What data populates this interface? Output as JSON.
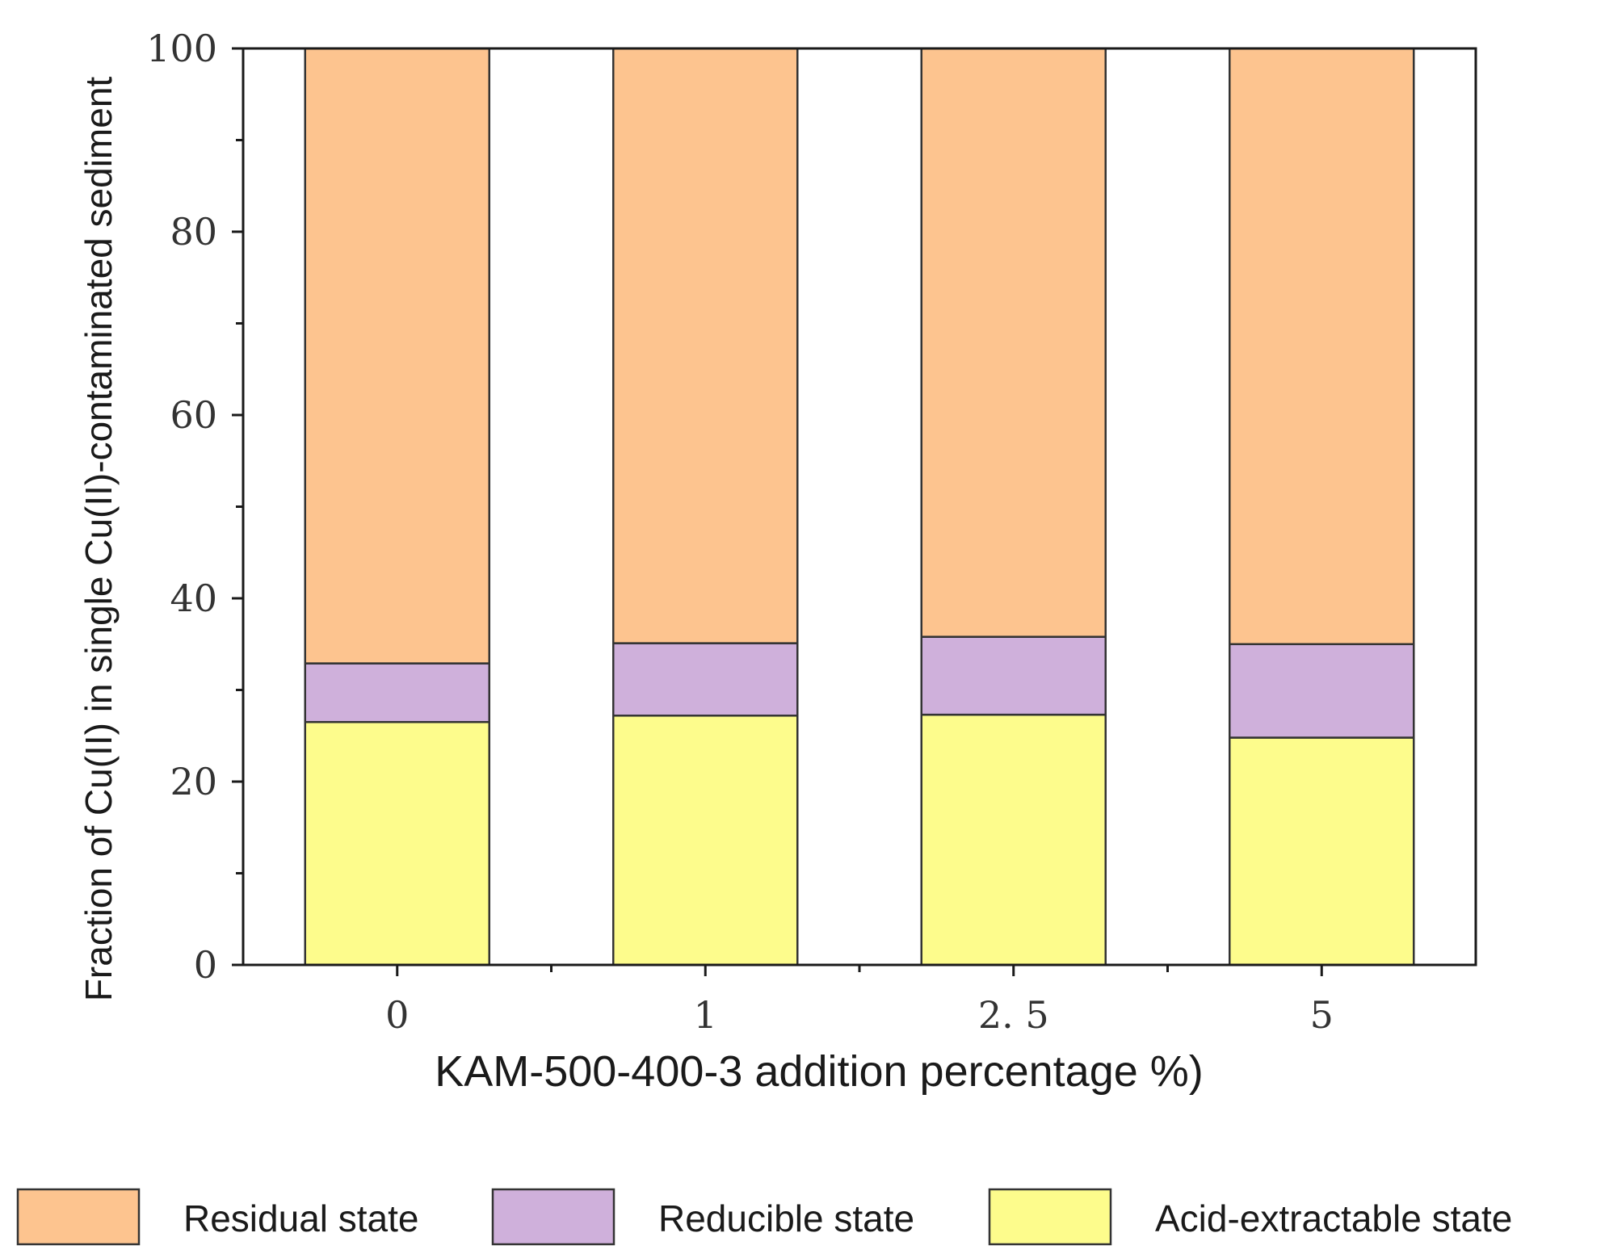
{
  "chart_data": {
    "type": "bar",
    "stacked": true,
    "title": "",
    "xlabel": "KAM-500-400-3 addition percentage %)",
    "ylabel": "Fraction of Cu(II) in single Cu(II)-contaminated sediment",
    "categories": [
      "0",
      "1",
      "2. 5",
      "5"
    ],
    "ylim": [
      0,
      100
    ],
    "yticks": [
      "0",
      "20",
      "40",
      "60",
      "80",
      "100"
    ],
    "series": [
      {
        "name": "Acid-extractable state",
        "color": "#fdfc8c",
        "values": [
          26.5,
          27.2,
          27.3,
          24.8
        ]
      },
      {
        "name": "Reducible state",
        "color": "#cfb0db",
        "values": [
          6.4,
          7.9,
          8.5,
          10.2
        ]
      },
      {
        "name": "Residual state",
        "color": "#fdc48f",
        "values": [
          67.1,
          64.9,
          64.2,
          65.0
        ]
      }
    ],
    "legend": {
      "position": "bottom",
      "order": [
        "Residual state",
        "Reducible state",
        "Acid-extractable state"
      ]
    },
    "grid": false
  }
}
